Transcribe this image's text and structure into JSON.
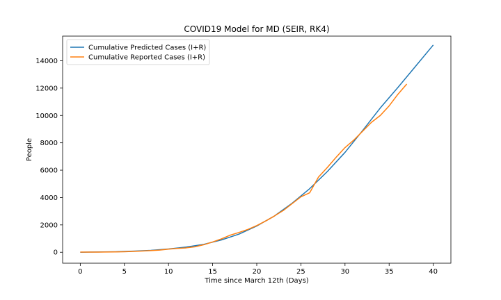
{
  "chart_data": {
    "type": "line",
    "title": "COVID19 Model for MD (SEIR, RK4)",
    "xlabel": "Time since March 12th (Days)",
    "ylabel": "People",
    "xlim": [
      -2,
      42
    ],
    "ylim": [
      -800,
      15800
    ],
    "xticks": [
      0,
      5,
      10,
      15,
      20,
      25,
      30,
      35,
      40
    ],
    "yticks": [
      0,
      2000,
      4000,
      6000,
      8000,
      10000,
      12000,
      14000
    ],
    "grid": false,
    "legend_position": "top-left",
    "series": [
      {
        "name": "Cumulative Predicted Cases (I+R)",
        "color": "#1f77b4",
        "x": [
          0,
          2,
          4,
          6,
          8,
          10,
          12,
          14,
          16,
          18,
          20,
          22,
          24,
          26,
          28,
          30,
          32,
          34,
          36,
          38,
          40
        ],
        "y": [
          0,
          20,
          40,
          80,
          140,
          240,
          380,
          580,
          900,
          1330,
          1920,
          2650,
          3580,
          4650,
          5900,
          7300,
          8900,
          10550,
          12050,
          13600,
          15150
        ]
      },
      {
        "name": "Cumulative Reported Cases (I+R)",
        "color": "#ff7f0e",
        "x": [
          0,
          1,
          2,
          3,
          4,
          5,
          6,
          7,
          8,
          9,
          10,
          11,
          12,
          13,
          14,
          15,
          16,
          17,
          18,
          19,
          20,
          21,
          22,
          23,
          24,
          25,
          26,
          27,
          28,
          29,
          30,
          31,
          32,
          33,
          34,
          35,
          36,
          37
        ],
        "y": [
          10,
          12,
          15,
          18,
          25,
          40,
          60,
          90,
          120,
          160,
          230,
          280,
          320,
          400,
          550,
          750,
          980,
          1250,
          1450,
          1670,
          1950,
          2280,
          2650,
          3050,
          3550,
          4050,
          4350,
          5500,
          6200,
          6950,
          7650,
          8200,
          8850,
          9500,
          10000,
          10700,
          11550,
          12300
        ]
      }
    ]
  }
}
